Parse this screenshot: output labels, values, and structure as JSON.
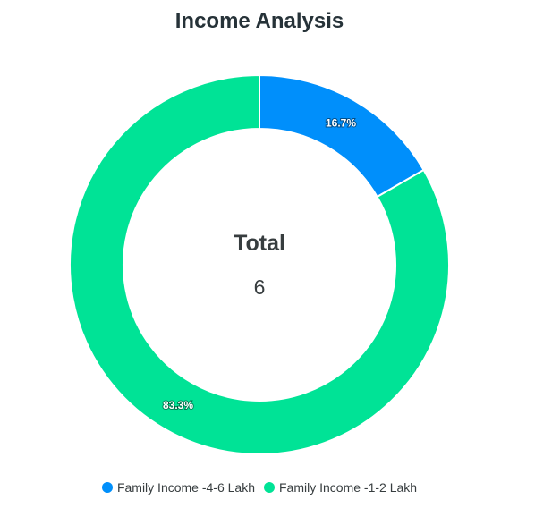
{
  "chart_data": {
    "type": "pie",
    "variant": "donut",
    "title": "Income Analysis",
    "categories": [
      "Family Income -4-6 Lakh",
      "Family Income -1-2 Lakh"
    ],
    "values": [
      1,
      5
    ],
    "percent_labels": [
      "16.7%",
      "83.3%"
    ],
    "colors": [
      "#008FFB",
      "#00E396"
    ],
    "total_label": "Total",
    "total_value": "6",
    "legend_position": "bottom"
  }
}
